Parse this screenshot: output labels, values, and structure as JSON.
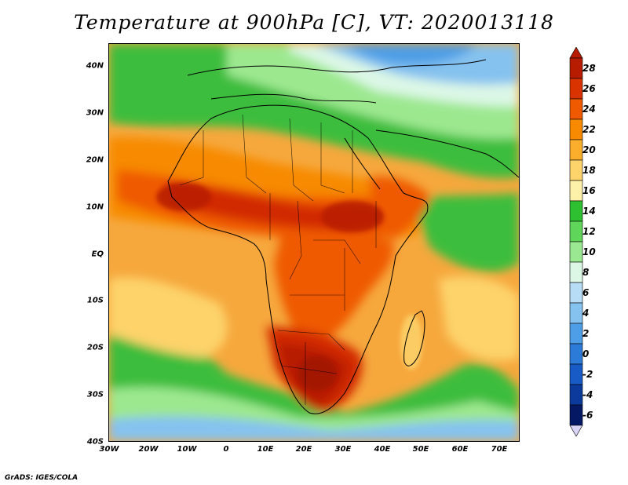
{
  "title": "Temperature at 900hPa [C], VT: 2020013118",
  "credit": "GrADS: IGES/COLA",
  "map": {
    "lat_labels": [
      "40N",
      "30N",
      "20N",
      "10N",
      "EQ",
      "10S",
      "20S",
      "30S",
      "40S"
    ],
    "lon_labels": [
      "30W",
      "20W",
      "10W",
      "0",
      "10E",
      "20E",
      "30E",
      "40E",
      "50E",
      "60E",
      "70E"
    ]
  },
  "colorbar": {
    "labels": [
      "28",
      "26",
      "24",
      "22",
      "20",
      "18",
      "16",
      "14",
      "12",
      "10",
      "8",
      "6",
      "4",
      "2",
      "0",
      "-2",
      "-4",
      "-6"
    ],
    "colors": [
      "#b71c00",
      "#d93300",
      "#ef5a00",
      "#f78a00",
      "#fbae2b",
      "#fdd36b",
      "#fdf0a8",
      "#2fc032",
      "#5fd55a",
      "#9be892",
      "#dcf7e6",
      "#b6dcf6",
      "#86c2ef",
      "#4d9ee6",
      "#2c7bd9",
      "#185bc6",
      "#0b3a9c",
      "#051864"
    ]
  },
  "colors": {
    "hot": "#d22c00",
    "very_hot": "#b71c00",
    "warm": "#f39100",
    "mild": "#fbb548",
    "cool_green": "#3cbd3c",
    "light_green": "#9ce88f",
    "pale": "#e4f8ec",
    "light_blue": "#9fd0f3",
    "blue": "#4a8fe0",
    "ocean": "#f7b24a"
  }
}
